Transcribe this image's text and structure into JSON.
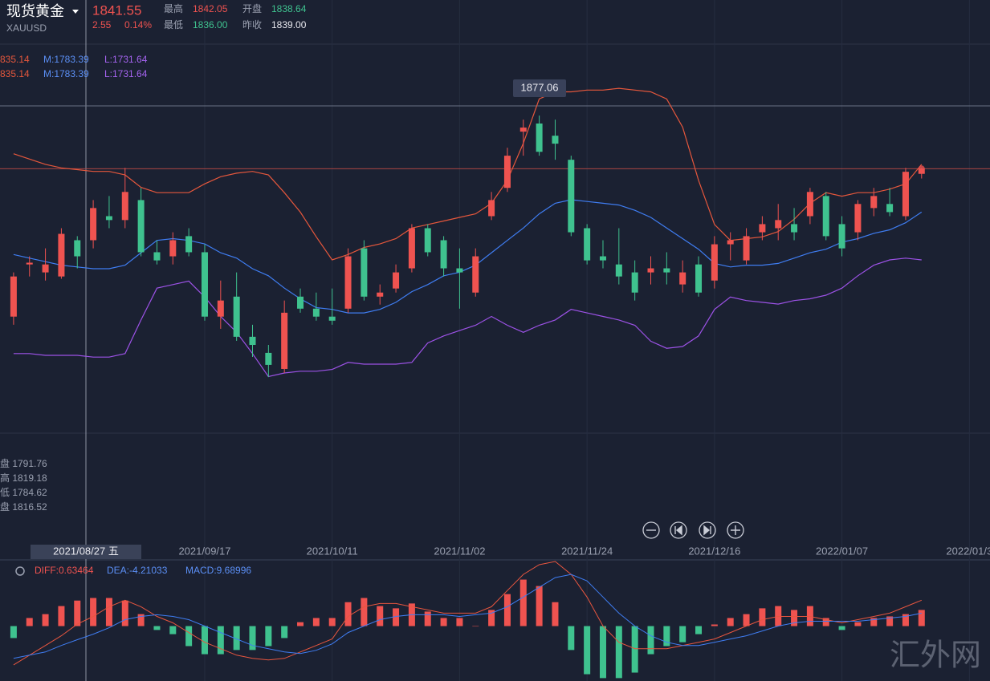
{
  "header": {
    "name": "现货黄金",
    "price": 1841.55,
    "symbol": "XAUUSD",
    "change": "2.55",
    "change_pct": "0.14%",
    "stats": [
      {
        "label": "最高",
        "value": "1842.05"
      },
      {
        "label": "开盘",
        "value": "1838.64"
      },
      {
        "label": "最低",
        "value": "1836.00"
      },
      {
        "label": "昨收",
        "value": "1839.00"
      }
    ]
  },
  "boll_legend": [
    [
      "835.14",
      "M:1783.39",
      "L:1731.64"
    ],
    [
      "835.14",
      "M:1783.39",
      "L:1731.64"
    ]
  ],
  "ohlc_info": [
    "盘 1791.76",
    "高 1819.18",
    "低 1784.62",
    "盘 1816.52"
  ],
  "macd_legend": [
    "DIFF:0.63464",
    "DEA:-4.21033",
    "MACD:9.68996"
  ],
  "watermark": "汇外网",
  "chart_data": [
    {
      "type": "candlestick",
      "crosshair_label": "2021/08/27 五",
      "categories": [
        null,
        null,
        null,
        null,
        null,
        null,
        null,
        null,
        null,
        null,
        null,
        null,
        "2021/09/17",
        null,
        null,
        null,
        null,
        null,
        null,
        null,
        "2021/10/11",
        null,
        null,
        null,
        null,
        null,
        null,
        null,
        "2021/11/02",
        null,
        null,
        null,
        null,
        null,
        null,
        null,
        "2021/11/24",
        null,
        null,
        null,
        null,
        null,
        null,
        null,
        "2021/12/16",
        null,
        null,
        null,
        null,
        null,
        null,
        null,
        "2022/01/07",
        null,
        null,
        null,
        null,
        null,
        null,
        null,
        "2022/01/3"
      ],
      "open": [
        1757.9,
        1787.4,
        1782.9,
        1780.6,
        1801.1,
        1801.1,
        1814.7,
        1812.5,
        1823.8,
        1794.3,
        1792.0,
        1803.4,
        1794.3,
        1757.9,
        1769.2,
        1746.5,
        1737.4,
        1728.3,
        1769.2,
        1762.4,
        1757.9,
        1762.4,
        1796.5,
        1769.2,
        1773.8,
        1785.2,
        1807.9,
        1801.1,
        1785.2,
        1771.5,
        1814.7,
        1830.7,
        1862.5,
        1867.1,
        1860.2,
        1846.6,
        1807.9,
        1792.0,
        1787.4,
        1782.9,
        1782.9,
        1785.2,
        1776.1,
        1787.4,
        1778.3,
        1798.8,
        1789.7,
        1805.6,
        1807.9,
        1810.2,
        1814.7,
        1826.1,
        1810.2,
        1805.6,
        1819.3,
        1821.6,
        1814.7,
        1838.64,
        null,
        null,
        null
      ],
      "high": [
        1782.9,
        1792.0,
        1796.5,
        1807.9,
        1803.4,
        1823.8,
        1826.1,
        1842.0,
        1830.7,
        1801.1,
        1805.6,
        1807.9,
        1798.8,
        1778.3,
        1782.9,
        1753.3,
        1741.9,
        1767.0,
        1773.8,
        1771.5,
        1773.8,
        1796.5,
        1801.1,
        1776.1,
        1787.4,
        1810.2,
        1810.2,
        1803.4,
        1796.5,
        1796.5,
        1828.4,
        1853.4,
        1869.3,
        1871.6,
        1869.3,
        1848.9,
        1810.2,
        1801.1,
        1807.9,
        1789.7,
        1792.0,
        1794.3,
        1789.7,
        1792.0,
        1803.4,
        1805.6,
        1807.9,
        1814.7,
        1821.6,
        1819.3,
        1830.7,
        1828.4,
        1814.7,
        1823.8,
        1830.7,
        1830.7,
        1842.0,
        1842.05,
        null,
        null,
        null
      ],
      "low": [
        1753.3,
        1780.6,
        1778.3,
        1779.3,
        1785.2,
        1796.5,
        1807.9,
        1807.9,
        1792.0,
        1787.4,
        1787.4,
        1792.0,
        1755.6,
        1751.0,
        1744.2,
        1735.1,
        1723.7,
        1726.0,
        1760.1,
        1755.6,
        1753.3,
        1760.1,
        1767.0,
        1764.7,
        1771.5,
        1782.9,
        1792.0,
        1780.6,
        1762.4,
        1769.2,
        1812.5,
        1828.4,
        1848.9,
        1848.9,
        1846.6,
        1803.4,
        1787.4,
        1785.2,
        1776.1,
        1767.0,
        1776.1,
        1776.1,
        1771.5,
        1769.2,
        1773.8,
        1789.7,
        1787.4,
        1801.1,
        1801.1,
        1801.1,
        1810.2,
        1801.1,
        1792.0,
        1801.1,
        1814.7,
        1814.7,
        1812.5,
        1836,
        null,
        null,
        null
      ],
      "close": [
        1780.6,
        1788.4,
        1787.4,
        1804.7,
        1792.0,
        1819.3,
        1812.5,
        1828.4,
        1794.3,
        1789.7,
        1801.1,
        1794.3,
        1757.9,
        1767.0,
        1746.5,
        1741.9,
        1730.6,
        1760.1,
        1762.4,
        1757.9,
        1755.6,
        1792.0,
        1769.2,
        1771.5,
        1782.9,
        1807.9,
        1794.3,
        1785.2,
        1782.9,
        1792.0,
        1823.8,
        1848.9,
        1864.8,
        1851.1,
        1855.7,
        1805.6,
        1789.7,
        1789.7,
        1780.6,
        1771.5,
        1785.2,
        1782.9,
        1782.9,
        1771.5,
        1798.8,
        1801.1,
        1803.4,
        1810.2,
        1812.5,
        1805.6,
        1828.4,
        1803.4,
        1796.5,
        1821.6,
        1826.1,
        1817.0,
        1839.8,
        1841.55,
        null,
        null,
        null
      ],
      "series": [
        {
          "color": "#e5573c",
          "values": [
            1850,
            1847,
            1844,
            1842,
            1841,
            1840,
            1840,
            1838,
            1831,
            1828,
            1828,
            1828,
            1833,
            1837,
            1839,
            1840,
            1838,
            1828,
            1817,
            1803,
            1790,
            1793,
            1797,
            1799,
            1802,
            1808,
            1810,
            1812,
            1814,
            1816,
            1822,
            1835,
            1856,
            1881,
            1885,
            1885,
            1886,
            1886,
            1887,
            1886,
            1885,
            1881,
            1865,
            1835,
            1810,
            1801,
            1802,
            1803,
            1806,
            1813,
            1822,
            1828,
            1826,
            1828,
            1828,
            1830,
            1833,
            1844,
            null,
            null,
            null
          ]
        },
        {
          "color": "#3f7df2",
          "values": [
            1793,
            1791,
            1789,
            1787,
            1786,
            1785,
            1785,
            1787,
            1794,
            1801,
            1802,
            1801,
            1799,
            1794,
            1791,
            1785,
            1781,
            1774,
            1768,
            1763,
            1762,
            1760,
            1760,
            1762,
            1766,
            1772,
            1776,
            1781,
            1783,
            1787,
            1794,
            1801,
            1808,
            1816,
            1822,
            1824,
            1823,
            1822,
            1821,
            1818,
            1814,
            1808,
            1802,
            1796,
            1788,
            1786,
            1787,
            1787,
            1788,
            1791,
            1794,
            1796,
            1800,
            1802,
            1805,
            1807,
            1811,
            1817,
            null,
            null,
            null
          ]
        },
        {
          "color": "#9c52e6",
          "values": [
            1737,
            1737,
            1736,
            1736,
            1736,
            1735,
            1735,
            1737,
            1756,
            1774,
            1776,
            1778,
            1769,
            1758,
            1749,
            1737,
            1724,
            1726,
            1727,
            1727,
            1728,
            1732,
            1731,
            1731,
            1731,
            1732,
            1743,
            1747,
            1750,
            1753,
            1758,
            1753,
            1749,
            1753,
            1756,
            1762,
            1760,
            1758,
            1756,
            1753,
            1744,
            1740,
            1741,
            1747,
            1762,
            1769,
            1767,
            1766,
            1765,
            1767,
            1768,
            1770,
            1774,
            1781,
            1787,
            1790,
            1791,
            1790,
            null,
            null,
            null
          ]
        }
      ],
      "up_color": "#ef5350",
      "down_color": "#3fc28f",
      "ylim": [
        1692,
        1912
      ],
      "max_marker": 1877.06
    },
    {
      "type": "macd",
      "ylim": [
        -17,
        20
      ],
      "up_color": "#ef5350",
      "down_color": "#3fc28f",
      "values": [
        -3.7,
        2.5,
        3.7,
        6.2,
        7.9,
        8.7,
        8.7,
        7.9,
        3.7,
        -1.2,
        -2.5,
        -6.2,
        -8.7,
        -8.7,
        -7.4,
        -7.4,
        -6.2,
        -3.7,
        1.2,
        2.5,
        2.5,
        7.4,
        8.7,
        6.2,
        5.5,
        7,
        4.5,
        2.5,
        2.5,
        0,
        5,
        9.9,
        14.4,
        12.4,
        7.4,
        -7.4,
        -14.9,
        -16.1,
        -16.1,
        -14.4,
        -8.7,
        -6.2,
        -5,
        -2.5,
        0.5,
        2.5,
        3.7,
        5.5,
        6.2,
        5,
        6.2,
        2.5,
        -1.2,
        1.2,
        2.5,
        3,
        3.7,
        5
      ],
      "series": [
        {
          "color": "#e8563f",
          "values": [
            -12,
            -9,
            -6,
            -3,
            0.6,
            3,
            6,
            8,
            6,
            3,
            1,
            -2,
            -5,
            -7,
            -9,
            -10,
            -10.5,
            -10,
            -8,
            -6,
            -4,
            3,
            6,
            7,
            7,
            6,
            5,
            4,
            4,
            4,
            6,
            11,
            16,
            19,
            20,
            16,
            9,
            0,
            -5,
            -7,
            -7,
            -7,
            -6,
            -5,
            -4,
            -2,
            0,
            2,
            3,
            3,
            3,
            2,
            1,
            2,
            3,
            4,
            6,
            8
          ]
        },
        {
          "color": "#3f7df2",
          "values": [
            -10,
            -9,
            -8,
            -6,
            -4.2,
            -2.5,
            -0.5,
            2,
            3,
            3.5,
            3,
            2,
            0,
            -2,
            -4,
            -6,
            -7,
            -8,
            -8.5,
            -7.5,
            -5.5,
            -2,
            0,
            2,
            3,
            3.5,
            3.5,
            3.5,
            3,
            3.5,
            4,
            6,
            9,
            12,
            15,
            16,
            14,
            9,
            4,
            0,
            -3,
            -5,
            -6,
            -6,
            -5,
            -4,
            -3,
            -1.5,
            0,
            1,
            1.5,
            1.5,
            1.5,
            1.5,
            2,
            2.5,
            3,
            4
          ]
        }
      ]
    }
  ]
}
